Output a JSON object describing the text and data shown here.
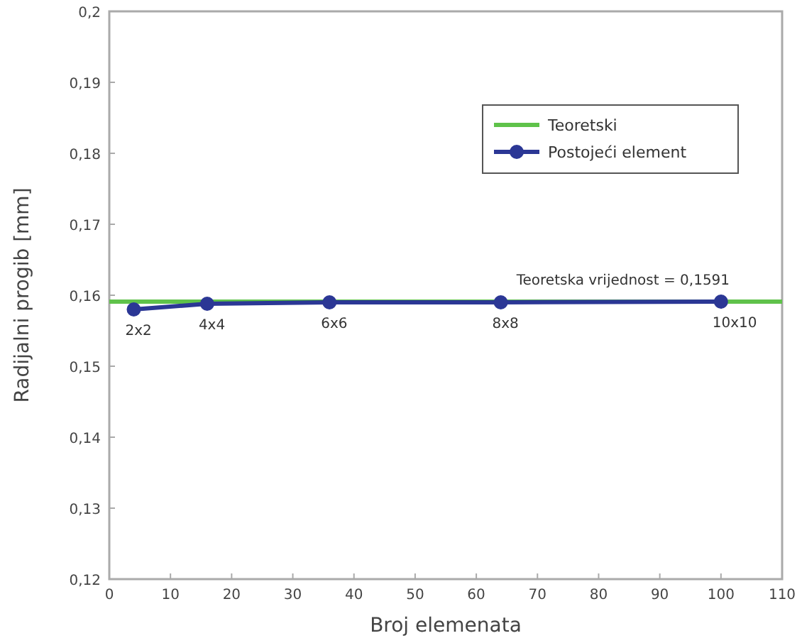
{
  "chart_data": {
    "type": "line",
    "xlabel": "Broj elemenata",
    "ylabel": "Radijalni progib [mm]",
    "xlim": [
      0,
      110
    ],
    "xticks": [
      0,
      10,
      20,
      30,
      40,
      50,
      60,
      70,
      80,
      90,
      100,
      110
    ],
    "ylim": [
      0.12,
      0.2
    ],
    "yticks": [
      {
        "value": 0.12,
        "label": "0,12"
      },
      {
        "value": 0.13,
        "label": "0,13"
      },
      {
        "value": 0.14,
        "label": "0,14"
      },
      {
        "value": 0.15,
        "label": "0,15"
      },
      {
        "value": 0.16,
        "label": "0,16"
      },
      {
        "value": 0.17,
        "label": "0,17"
      },
      {
        "value": 0.18,
        "label": "0,18"
      },
      {
        "value": 0.19,
        "label": "0,19"
      },
      {
        "value": 0.2,
        "label": "0,2"
      }
    ],
    "series": [
      {
        "name": "Teoretski",
        "color": "#5fc24a",
        "x": [
          0,
          110
        ],
        "values": [
          0.1591,
          0.1591
        ],
        "marker": "none"
      },
      {
        "name": "Postojeći element",
        "color": "#2b3795",
        "x": [
          4,
          16,
          36,
          64,
          100
        ],
        "values": [
          0.158,
          0.1588,
          0.159,
          0.159,
          0.1591
        ],
        "marker": "circle"
      }
    ],
    "annotations": [
      {
        "text": "2x2",
        "x": 4,
        "y": 0.158
      },
      {
        "text": "4x4",
        "x": 16,
        "y": 0.1588
      },
      {
        "text": "6x6",
        "x": 36,
        "y": 0.159
      },
      {
        "text": "8x8",
        "x": 64,
        "y": 0.159
      },
      {
        "text": "10x10",
        "x": 100,
        "y": 0.1591
      },
      {
        "text": "Teoretska vrijednost = 0,1591",
        "x": 84,
        "y": 0.1591
      }
    ],
    "legend": "top right",
    "grid": false
  }
}
